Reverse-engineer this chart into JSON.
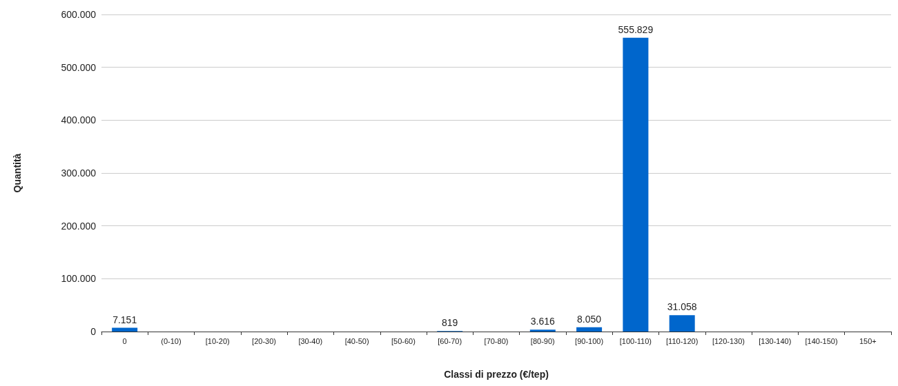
{
  "chart_data": {
    "type": "bar",
    "xlabel": "Classi di prezzo (€/tep)",
    "ylabel": "Quantità",
    "categories": [
      "0",
      "(0-10)",
      "[10-20)",
      "[20-30)",
      "[30-40)",
      "[40-50)",
      "[50-60)",
      "[60-70)",
      "[70-80)",
      "[80-90)",
      "[90-100)",
      "[100-110)",
      "[110-120)",
      "[120-130)",
      "[130-140)",
      "[140-150)",
      "150+"
    ],
    "values": [
      7151,
      0,
      0,
      0,
      0,
      0,
      0,
      819,
      0,
      3616,
      8050,
      555829,
      31058,
      0,
      0,
      0,
      0
    ],
    "value_labels": [
      "7.151",
      null,
      null,
      null,
      null,
      null,
      null,
      "819",
      null,
      "3.616",
      "8.050",
      "555.829",
      "31.058",
      null,
      null,
      null,
      null
    ],
    "color": "#0066cc",
    "ylim": [
      0,
      600000
    ],
    "yticks": [
      0,
      {
        "value": 100000,
        "label": "100.000"
      },
      {
        "value": 200000,
        "label": "200.000"
      },
      {
        "value": 300000,
        "label": "300.000"
      },
      {
        "value": 400000,
        "label": "400.000"
      },
      {
        "value": 500000,
        "label": "500.000"
      },
      {
        "value": 600000,
        "label": "600.000"
      }
    ],
    "grid": "y"
  }
}
